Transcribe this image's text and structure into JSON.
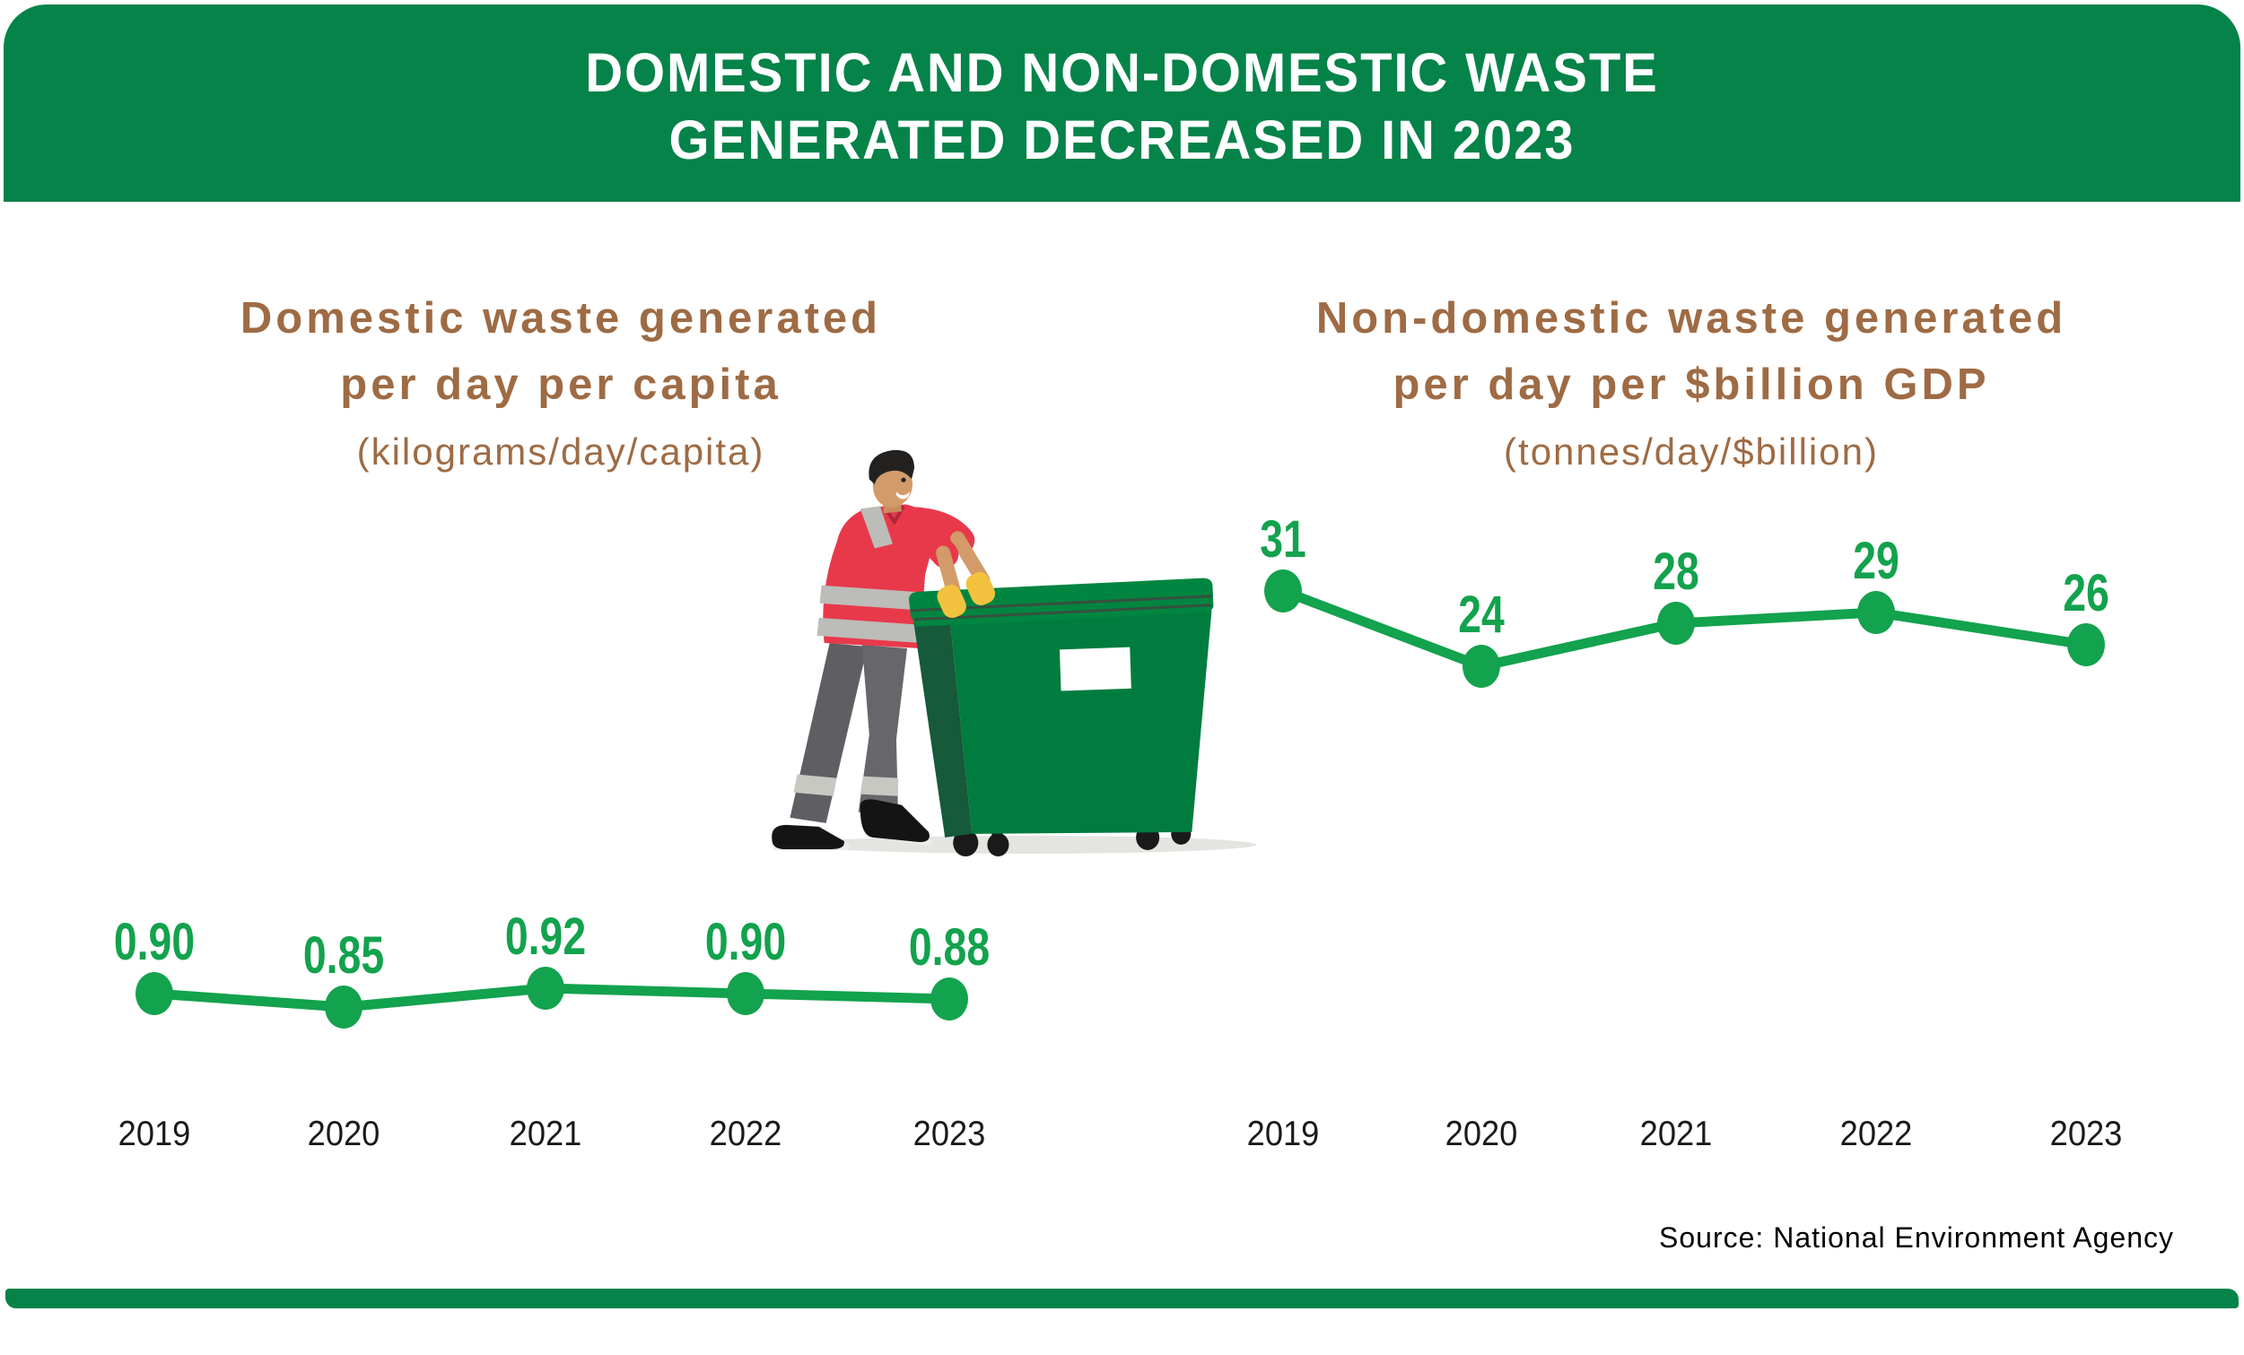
{
  "banner": {
    "line1": "DOMESTIC AND NON-DOMESTIC WASTE",
    "line2": "GENERATED DECREASED IN 2023"
  },
  "colors": {
    "banner_green": "#058349",
    "line_green": "#13A24D",
    "title_brown": "#9E6B44",
    "axis_black": "#1A1A1A"
  },
  "source_note": "Source: National Environment Agency",
  "illustration_alt": "Waste-collection worker in red shirt pushing a green wheeled dumpster",
  "chart_data": [
    {
      "type": "line",
      "id": "domestic-waste",
      "title_line1": "Domestic waste generated",
      "title_line2": "per day per capita",
      "unit": "(kilograms/day/capita)",
      "categories": [
        "2019",
        "2020",
        "2021",
        "2022",
        "2023"
      ],
      "values": [
        0.9,
        0.85,
        0.92,
        0.9,
        0.88
      ],
      "point_labels": [
        "0.90",
        "0.85",
        "0.92",
        "0.90",
        "0.88"
      ],
      "grid": false,
      "legend": false,
      "marker": "filled-circle",
      "label_position": "above-points"
    },
    {
      "type": "line",
      "id": "non-domestic-waste",
      "title_line1": "Non-domestic waste generated",
      "title_line2": "per day per $billion GDP",
      "unit": "(tonnes/day/$billion)",
      "categories": [
        "2019",
        "2020",
        "2021",
        "2022",
        "2023"
      ],
      "values": [
        31,
        24,
        28,
        29,
        26
      ],
      "point_labels": [
        "31",
        "24",
        "28",
        "29",
        "26"
      ],
      "grid": false,
      "legend": false,
      "marker": "filled-circle",
      "label_position": "above-points"
    }
  ]
}
